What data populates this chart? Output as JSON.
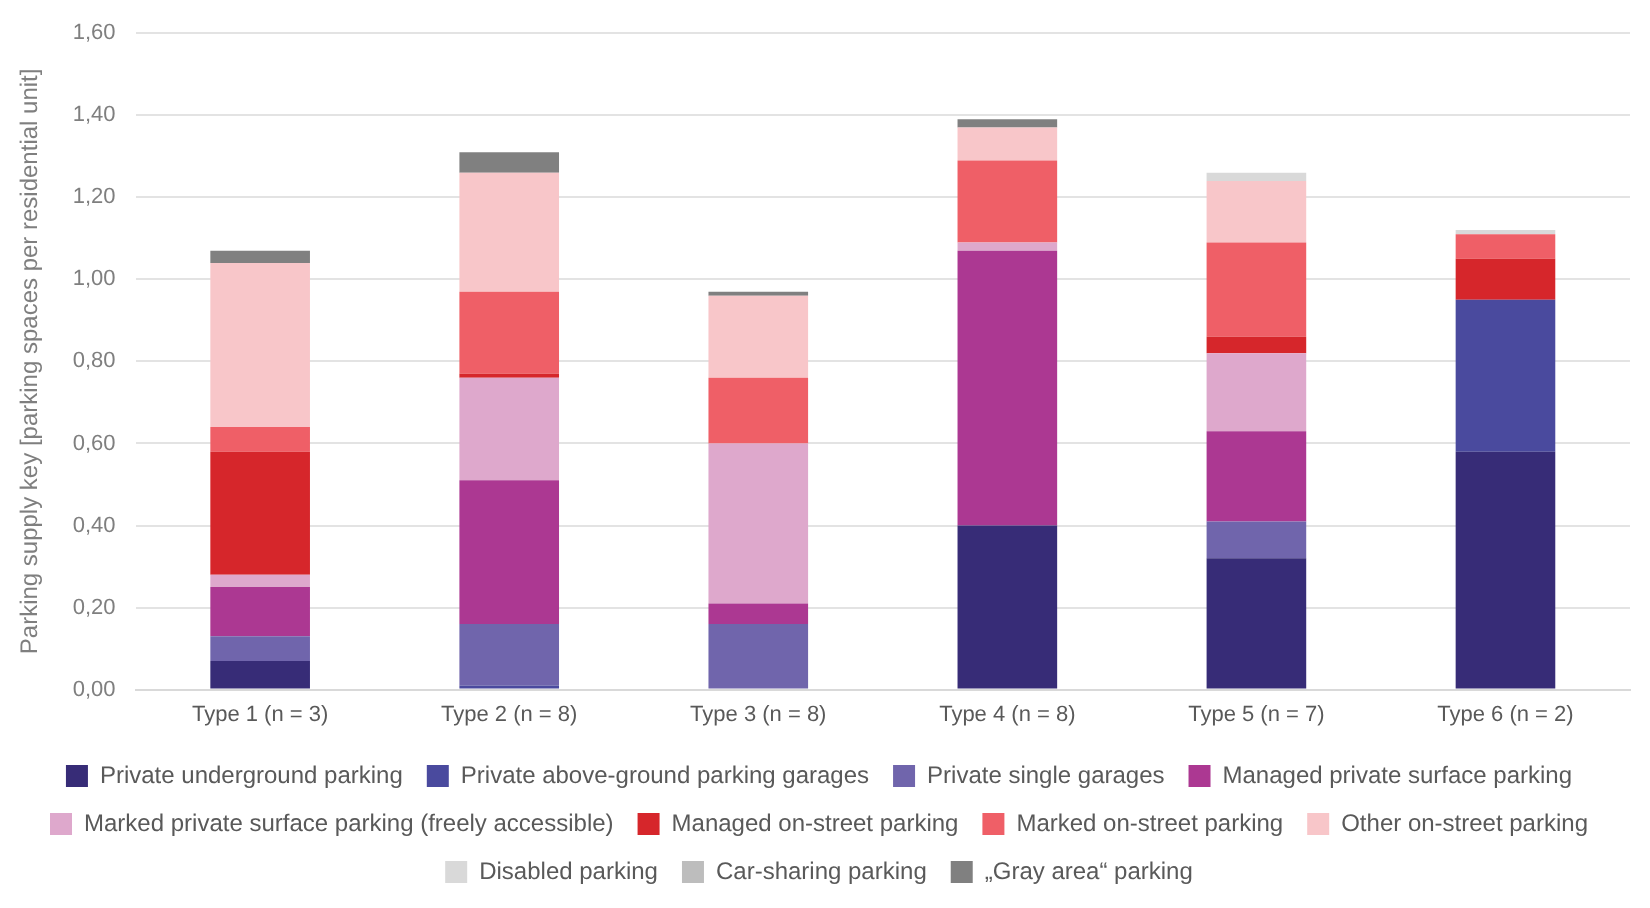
{
  "chart_data": {
    "type": "bar",
    "stacked": true,
    "ylabel": "Parking supply key [parking spaces per residential unit]",
    "categories": [
      "Type 1 (n = 3)",
      "Type 2 (n = 8)",
      "Type 3 (n = 8)",
      "Type 4 (n = 8)",
      "Type 5 (n = 7)",
      "Type 6 (n = 2)"
    ],
    "series": [
      {
        "name": "Private underground parking",
        "color": "#372c77",
        "values": [
          0.07,
          null,
          null,
          0.4,
          0.32,
          0.58
        ]
      },
      {
        "name": "Private above-ground parking garages",
        "color": "#4a4a9e",
        "values": [
          null,
          0.01,
          null,
          null,
          null,
          0.37
        ]
      },
      {
        "name": "Private single garages",
        "color": "#7065ac",
        "values": [
          0.06,
          0.15,
          0.16,
          null,
          0.09,
          null
        ]
      },
      {
        "name": "Managed private surface parking",
        "color": "#ac3892",
        "values": [
          0.12,
          0.35,
          0.05,
          0.67,
          0.22,
          null
        ]
      },
      {
        "name": "Marked private surface parking (freely accessible)",
        "color": "#dea8cc",
        "values": [
          0.03,
          0.25,
          0.39,
          0.02,
          0.19,
          null
        ]
      },
      {
        "name": "Managed on-street parking",
        "color": "#d6262b",
        "values": [
          0.3,
          0.01,
          null,
          null,
          0.04,
          0.1
        ]
      },
      {
        "name": "Marked on-street parking",
        "color": "#ef5f67",
        "values": [
          0.06,
          0.2,
          0.16,
          0.2,
          0.23,
          0.06
        ]
      },
      {
        "name": "Other on-street parking",
        "color": "#f8c6c9",
        "values": [
          0.4,
          0.29,
          0.2,
          0.08,
          0.15,
          null
        ]
      },
      {
        "name": "Disabled parking",
        "color": "#d9d9d9",
        "values": [
          null,
          null,
          null,
          null,
          0.02,
          0.01
        ]
      },
      {
        "name": "Car-sharing parking",
        "color": "#bdbdbd",
        "values": [
          null,
          null,
          null,
          null,
          null,
          null
        ]
      },
      {
        "name": "„Gray area“ parking",
        "color": "#808080",
        "values": [
          0.03,
          0.05,
          0.01,
          0.02,
          null,
          null
        ]
      }
    ],
    "ylim": [
      0,
      1.6
    ],
    "yticks": [
      {
        "value": 0,
        "label": "0,00"
      },
      {
        "value": 0.2,
        "label": "0,20"
      },
      {
        "value": 0.4,
        "label": "0,40"
      },
      {
        "value": 0.6,
        "label": "0,60"
      },
      {
        "value": 0.8,
        "label": "0,80"
      },
      {
        "value": 1.0,
        "label": "1,00"
      },
      {
        "value": 1.2,
        "label": "1,20"
      },
      {
        "value": 1.4,
        "label": "1,40"
      },
      {
        "value": 1.6,
        "label": "1,60"
      }
    ],
    "grid": "y",
    "legend": "bottom"
  }
}
